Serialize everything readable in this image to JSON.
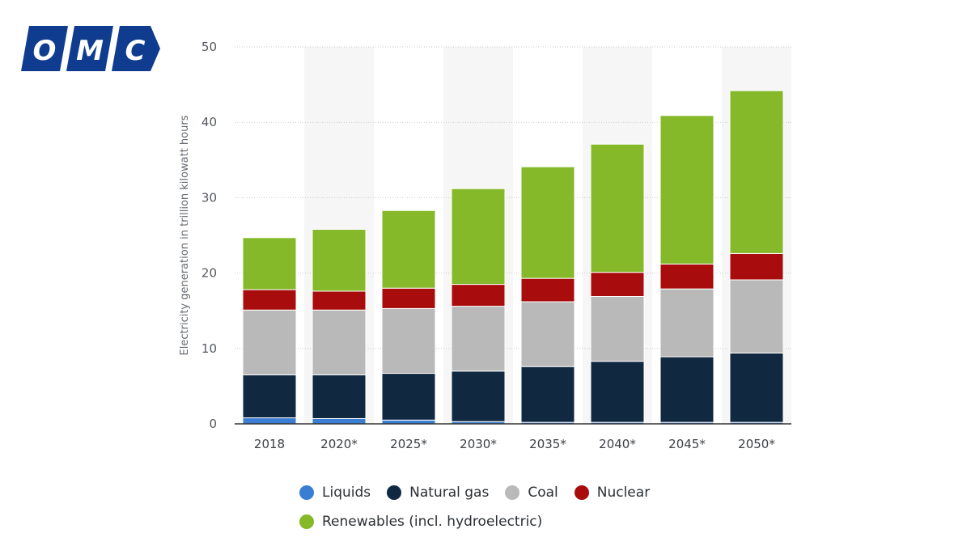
{
  "logo": {
    "letters": [
      "O",
      "M",
      "C"
    ],
    "color": "#0f3c8f"
  },
  "chart_data": {
    "type": "bar",
    "stacked": true,
    "title": "",
    "xlabel": "",
    "ylabel": "Electricity generation in trillion kilowatt hours",
    "ylim": [
      0,
      50
    ],
    "yticks": [
      0,
      10,
      20,
      30,
      40,
      50
    ],
    "grid": true,
    "legend_position": "bottom",
    "categories": [
      "2018",
      "2020*",
      "2025*",
      "2030*",
      "2035*",
      "2040*",
      "2045*",
      "2050*"
    ],
    "series": [
      {
        "name": "Liquids",
        "color": "#3a7ed4",
        "values": [
          0.8,
          0.7,
          0.5,
          0.3,
          0.2,
          0.2,
          0.2,
          0.2
        ]
      },
      {
        "name": "Natural gas",
        "color": "#112841",
        "values": [
          5.7,
          5.8,
          6.2,
          6.7,
          7.4,
          8.1,
          8.7,
          9.2
        ]
      },
      {
        "name": "Coal",
        "color": "#b9b9b9",
        "values": [
          8.6,
          8.6,
          8.6,
          8.6,
          8.6,
          8.6,
          9.0,
          9.7
        ]
      },
      {
        "name": "Nuclear",
        "color": "#a80c0c",
        "values": [
          2.7,
          2.5,
          2.7,
          2.9,
          3.1,
          3.2,
          3.3,
          3.5
        ]
      },
      {
        "name": "Renewables (incl. hydroelectric)",
        "color": "#85b92a",
        "values": [
          6.9,
          8.2,
          10.3,
          12.7,
          14.8,
          17.0,
          19.7,
          21.6
        ]
      }
    ],
    "legend": {
      "rows": [
        [
          "Liquids",
          "Natural gas",
          "Coal",
          "Nuclear"
        ],
        [
          "Renewables (incl. hydroelectric)"
        ]
      ]
    }
  }
}
